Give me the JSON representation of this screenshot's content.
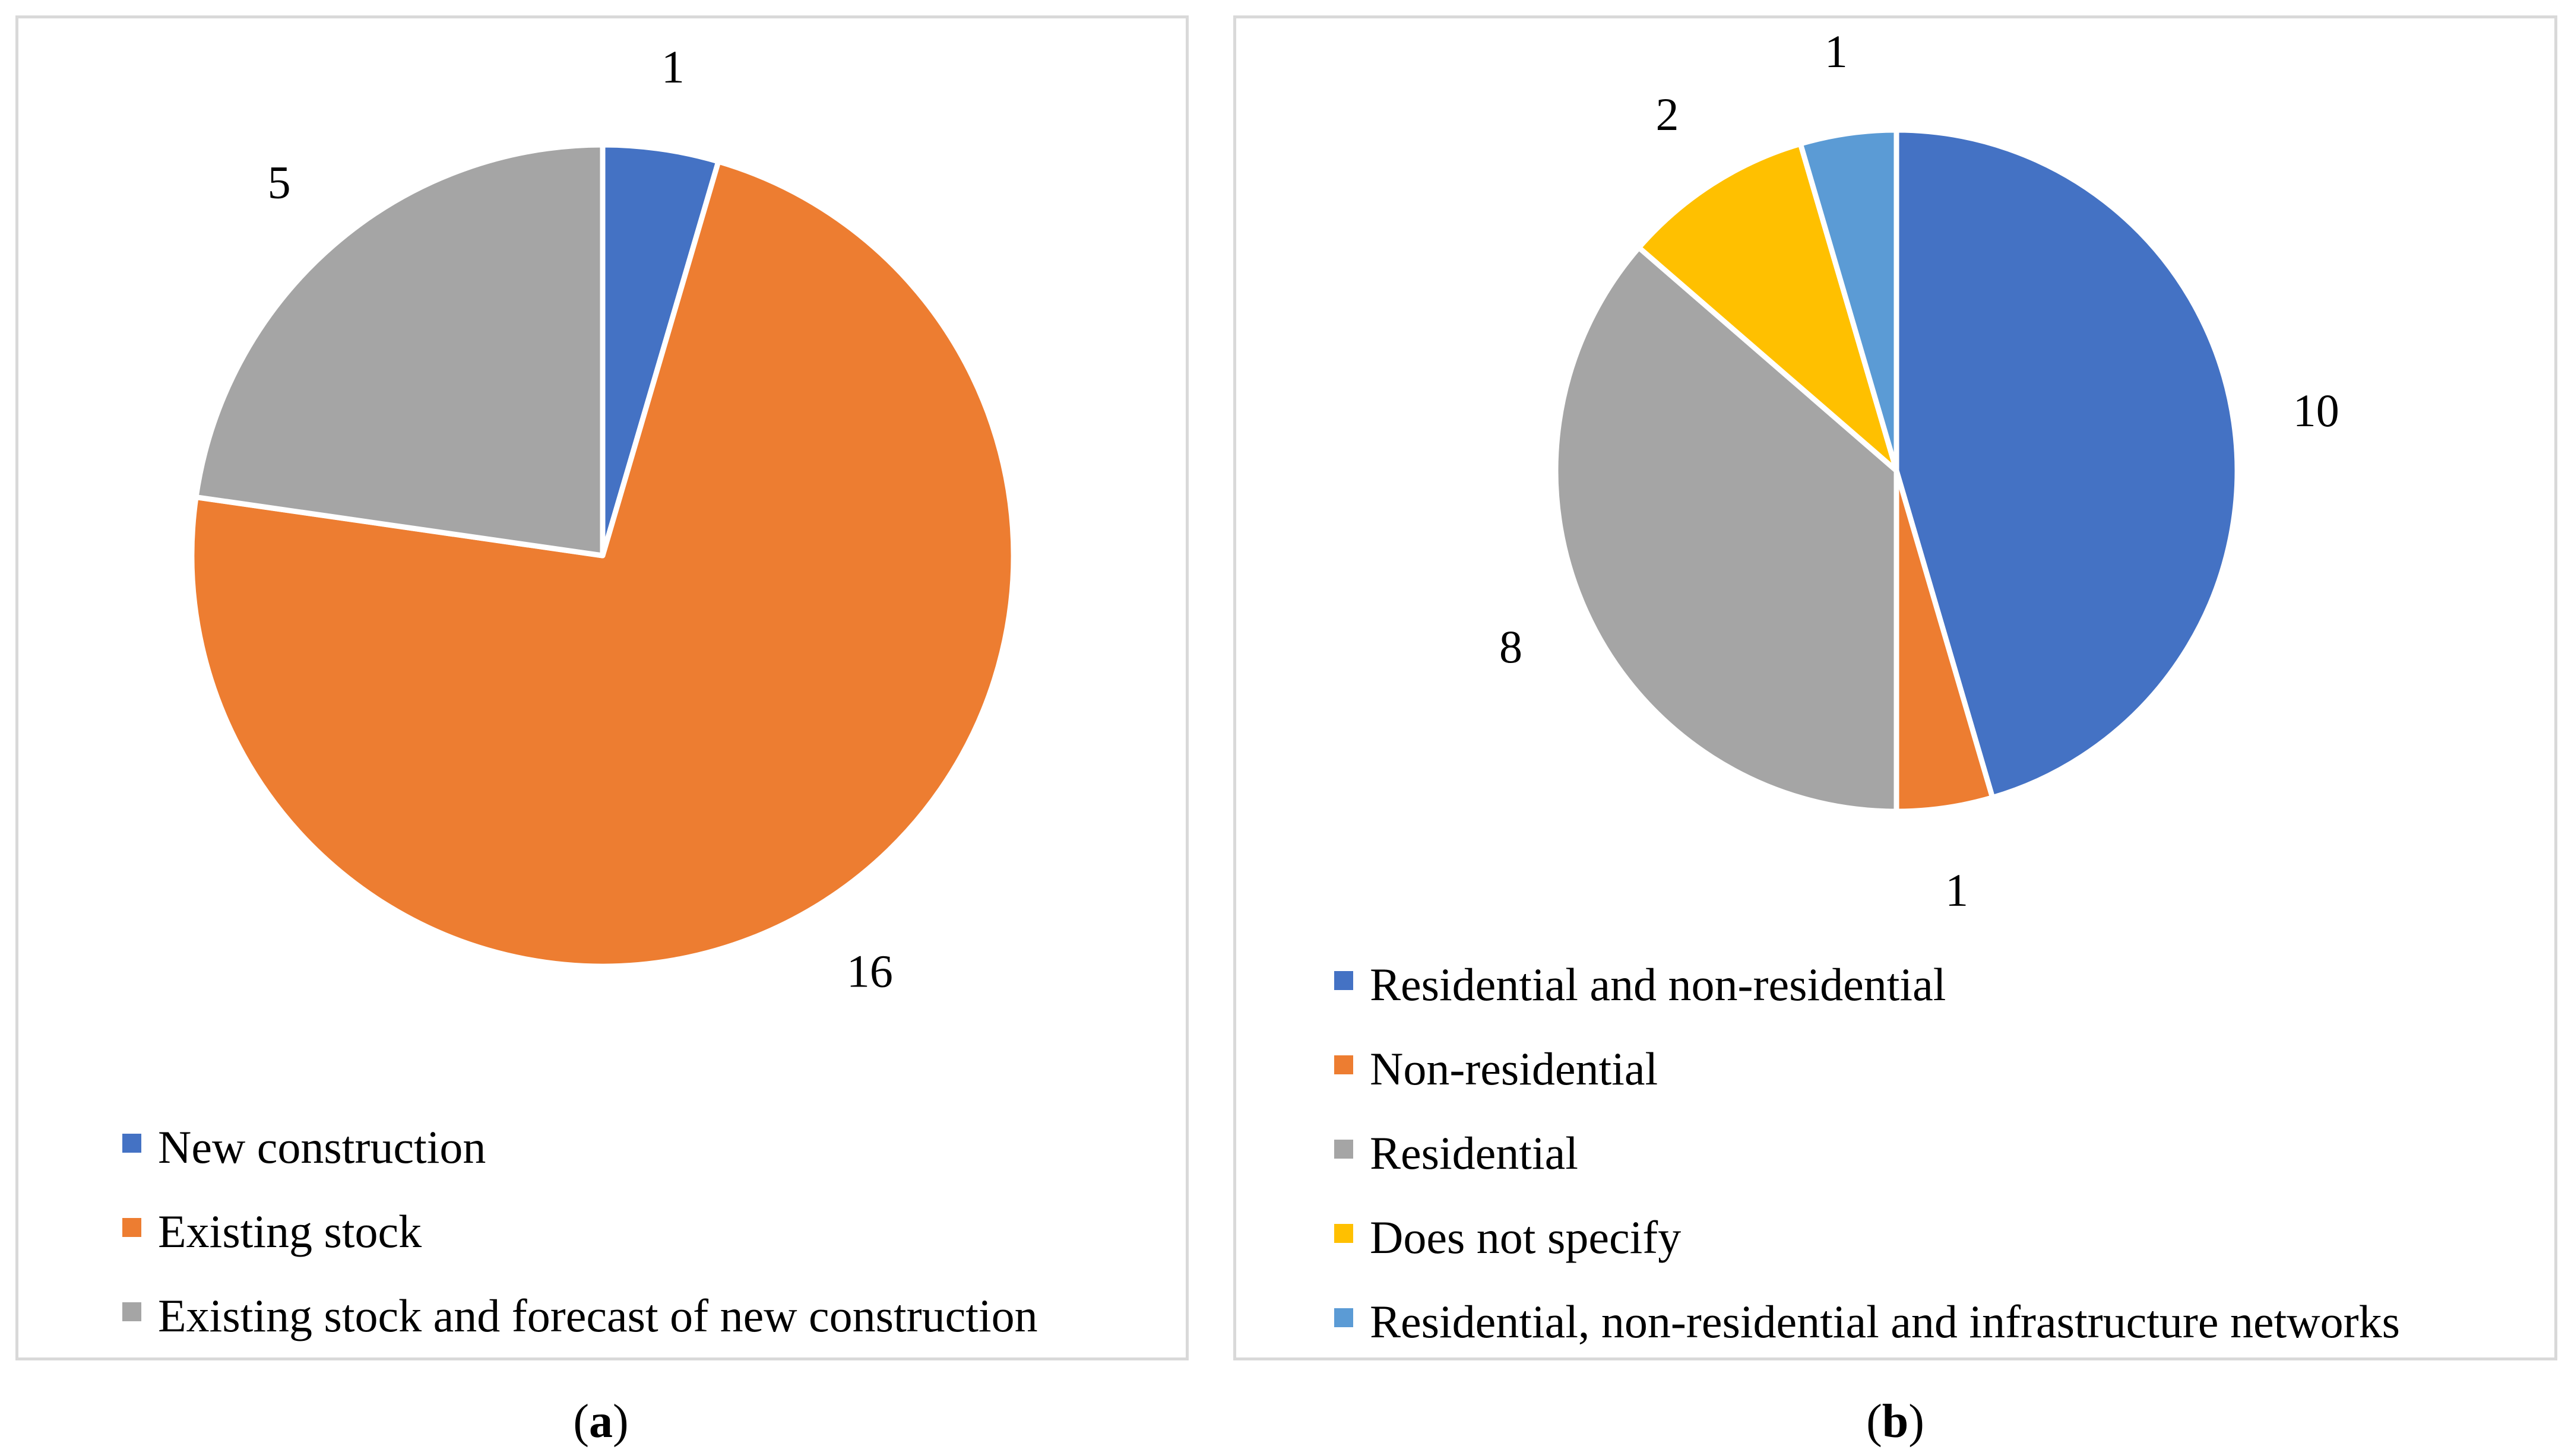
{
  "chart_data": [
    {
      "type": "pie",
      "categories": [
        "New construction",
        "Existing stock",
        "Existing stock and forecast of new construction"
      ],
      "values": [
        1,
        16,
        5
      ],
      "data_labels": [
        "1",
        "16",
        "5"
      ],
      "colors": [
        "#4472C4",
        "#ED7D31",
        "#A5A5A5"
      ],
      "legend_position": "bottom",
      "caption_prefix": "(",
      "caption_letter": "a",
      "caption_suffix": ")"
    },
    {
      "type": "pie",
      "categories": [
        "Residential and non-residential",
        "Non-residential",
        "Residential",
        "Does not specify",
        "Residential, non-residential and infrastructure networks"
      ],
      "values": [
        10,
        1,
        8,
        2,
        1
      ],
      "data_labels": [
        "10",
        "1",
        "8",
        "2",
        "1"
      ],
      "colors": [
        "#4472C4",
        "#ED7D31",
        "#A5A5A5",
        "#FFC000",
        "#5B9BD5"
      ],
      "legend_position": "bottom",
      "caption_prefix": "(",
      "caption_letter": "b",
      "caption_suffix": ")"
    }
  ]
}
